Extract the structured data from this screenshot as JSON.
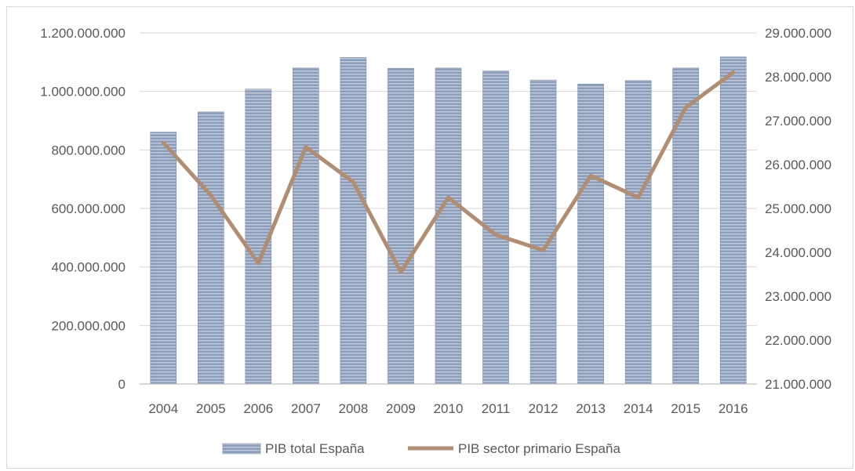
{
  "chart_data": {
    "type": "bar+line",
    "categories": [
      "2004",
      "2005",
      "2006",
      "2007",
      "2008",
      "2009",
      "2010",
      "2011",
      "2012",
      "2013",
      "2014",
      "2015",
      "2016"
    ],
    "series": [
      {
        "name": "PIB total España",
        "type": "bar",
        "axis": "left",
        "values": [
          861000000,
          930000000,
          1008000000,
          1080000000,
          1116000000,
          1079000000,
          1080000000,
          1070000000,
          1039000000,
          1025000000,
          1037000000,
          1080000000,
          1118000000
        ]
      },
      {
        "name": "PIB sector primario España",
        "type": "line",
        "axis": "right",
        "values": [
          26500000,
          25300000,
          23750000,
          26400000,
          25600000,
          23550000,
          25250000,
          24400000,
          24050000,
          25750000,
          25250000,
          27300000,
          28100000
        ]
      }
    ],
    "y_left": {
      "ylim": [
        0,
        1200000000
      ],
      "ticks": [
        "0",
        "200.000.000",
        "400.000.000",
        "600.000.000",
        "800.000.000",
        "1.000.000.000",
        "1.200.000.000"
      ]
    },
    "y_right": {
      "ylim": [
        21000000,
        29000000
      ],
      "ticks": [
        "21.000.000",
        "22.000.000",
        "23.000.000",
        "24.000.000",
        "25.000.000",
        "26.000.000",
        "27.000.000",
        "28.000.000",
        "29.000.000"
      ]
    },
    "grid": true,
    "legend_position": "bottom",
    "colors": {
      "bar": "#8497b0",
      "bar_stripe": "#b4c0d2",
      "line": "#b08d73",
      "grid": "#d9d9d9",
      "text": "#595959"
    }
  }
}
